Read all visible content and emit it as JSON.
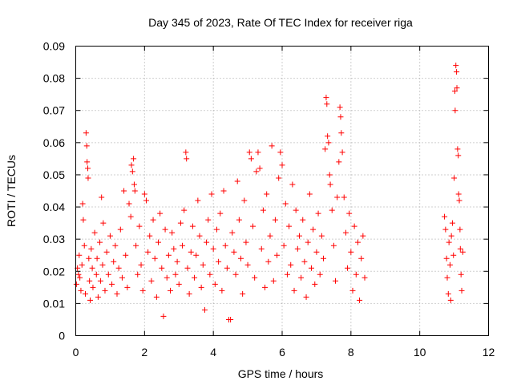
{
  "chart_data": {
    "type": "scatter",
    "title": "Day 345 of 2023, Rate Of TEC Index for receiver riga",
    "xlabel": "GPS time / hours",
    "ylabel": "ROTI / TECUs",
    "xlim": [
      0,
      12
    ],
    "ylim": [
      0,
      0.09
    ],
    "xticks": [
      0,
      2,
      4,
      6,
      8,
      10,
      12
    ],
    "xtick_labels": [
      "0",
      "2",
      "4",
      "6",
      "8",
      "10",
      "12"
    ],
    "yticks": [
      0,
      0.01,
      0.02,
      0.03,
      0.04,
      0.05,
      0.06,
      0.07,
      0.08,
      0.09
    ],
    "ytick_labels": [
      "0",
      "0.01",
      "0.02",
      "0.03",
      "0.04",
      "0.05",
      "0.06",
      "0.07",
      "0.08",
      "0.09"
    ],
    "grid": true,
    "marker": "+",
    "color": "#ff0000",
    "series": [
      {
        "points": [
          [
            0.02,
            0.016
          ],
          [
            0.05,
            0.021
          ],
          [
            0.08,
            0.019
          ],
          [
            0.1,
            0.025
          ],
          [
            0.12,
            0.018
          ],
          [
            0.15,
            0.014
          ],
          [
            0.18,
            0.022
          ],
          [
            0.2,
            0.041
          ],
          [
            0.22,
            0.036
          ],
          [
            0.25,
            0.028
          ],
          [
            0.28,
            0.013
          ],
          [
            0.3,
            0.063
          ],
          [
            0.32,
            0.059
          ],
          [
            0.33,
            0.054
          ],
          [
            0.35,
            0.052
          ],
          [
            0.36,
            0.049
          ],
          [
            0.38,
            0.024
          ],
          [
            0.4,
            0.017
          ],
          [
            0.42,
            0.011
          ],
          [
            0.45,
            0.027
          ],
          [
            0.48,
            0.021
          ],
          [
            0.5,
            0.015
          ],
          [
            0.55,
            0.032
          ],
          [
            0.6,
            0.019
          ],
          [
            0.62,
            0.024
          ],
          [
            0.65,
            0.012
          ],
          [
            0.7,
            0.029
          ],
          [
            0.72,
            0.017
          ],
          [
            0.75,
            0.043
          ],
          [
            0.78,
            0.022
          ],
          [
            0.8,
            0.035
          ],
          [
            0.85,
            0.014
          ],
          [
            0.9,
            0.026
          ],
          [
            0.95,
            0.019
          ],
          [
            1.0,
            0.031
          ],
          [
            1.05,
            0.016
          ],
          [
            1.1,
            0.023
          ],
          [
            1.15,
            0.028
          ],
          [
            1.2,
            0.013
          ],
          [
            1.25,
            0.021
          ],
          [
            1.3,
            0.033
          ],
          [
            1.35,
            0.018
          ],
          [
            1.4,
            0.045
          ],
          [
            1.45,
            0.025
          ],
          [
            1.5,
            0.015
          ],
          [
            1.55,
            0.041
          ],
          [
            1.6,
            0.037
          ],
          [
            1.62,
            0.053
          ],
          [
            1.65,
            0.051
          ],
          [
            1.68,
            0.055
          ],
          [
            1.7,
            0.047
          ],
          [
            1.72,
            0.045
          ],
          [
            1.75,
            0.028
          ],
          [
            1.8,
            0.019
          ],
          [
            1.85,
            0.034
          ],
          [
            1.9,
            0.022
          ],
          [
            1.95,
            0.014
          ],
          [
            2.0,
            0.044
          ],
          [
            2.05,
            0.042
          ],
          [
            2.1,
            0.026
          ],
          [
            2.15,
            0.031
          ],
          [
            2.2,
            0.017
          ],
          [
            2.25,
            0.036
          ],
          [
            2.3,
            0.024
          ],
          [
            2.35,
            0.012
          ],
          [
            2.4,
            0.029
          ],
          [
            2.45,
            0.038
          ],
          [
            2.5,
            0.021
          ],
          [
            2.55,
            0.006
          ],
          [
            2.6,
            0.033
          ],
          [
            2.65,
            0.018
          ],
          [
            2.7,
            0.025
          ],
          [
            2.75,
            0.014
          ],
          [
            2.8,
            0.032
          ],
          [
            2.85,
            0.027
          ],
          [
            2.9,
            0.019
          ],
          [
            2.95,
            0.023
          ],
          [
            3.0,
            0.016
          ],
          [
            3.05,
            0.035
          ],
          [
            3.1,
            0.028
          ],
          [
            3.15,
            0.039
          ],
          [
            3.2,
            0.057
          ],
          [
            3.22,
            0.055
          ],
          [
            3.25,
            0.021
          ],
          [
            3.3,
            0.013
          ],
          [
            3.35,
            0.026
          ],
          [
            3.4,
            0.034
          ],
          [
            3.45,
            0.018
          ],
          [
            3.5,
            0.025
          ],
          [
            3.55,
            0.042
          ],
          [
            3.6,
            0.031
          ],
          [
            3.65,
            0.015
          ],
          [
            3.7,
            0.022
          ],
          [
            3.75,
            0.008
          ],
          [
            3.8,
            0.029
          ],
          [
            3.85,
            0.036
          ],
          [
            3.9,
            0.019
          ],
          [
            3.95,
            0.044
          ],
          [
            4.0,
            0.027
          ],
          [
            4.05,
            0.016
          ],
          [
            4.1,
            0.033
          ],
          [
            4.15,
            0.023
          ],
          [
            4.2,
            0.038
          ],
          [
            4.25,
            0.014
          ],
          [
            4.3,
            0.045
          ],
          [
            4.35,
            0.028
          ],
          [
            4.4,
            0.021
          ],
          [
            4.45,
            0.005
          ],
          [
            4.5,
            0.005
          ],
          [
            4.55,
            0.032
          ],
          [
            4.6,
            0.026
          ],
          [
            4.65,
            0.019
          ],
          [
            4.7,
            0.048
          ],
          [
            4.75,
            0.036
          ],
          [
            4.8,
            0.024
          ],
          [
            4.85,
            0.013
          ],
          [
            4.9,
            0.042
          ],
          [
            4.95,
            0.029
          ],
          [
            5.0,
            0.022
          ],
          [
            5.05,
            0.057
          ],
          [
            5.1,
            0.055
          ],
          [
            5.15,
            0.034
          ],
          [
            5.2,
            0.018
          ],
          [
            5.25,
            0.051
          ],
          [
            5.3,
            0.057
          ],
          [
            5.35,
            0.052
          ],
          [
            5.4,
            0.027
          ],
          [
            5.45,
            0.039
          ],
          [
            5.5,
            0.015
          ],
          [
            5.55,
            0.044
          ],
          [
            5.6,
            0.023
          ],
          [
            5.65,
            0.031
          ],
          [
            5.7,
            0.059
          ],
          [
            5.75,
            0.017
          ],
          [
            5.8,
            0.036
          ],
          [
            5.85,
            0.025
          ],
          [
            5.9,
            0.049
          ],
          [
            5.95,
            0.057
          ],
          [
            6.0,
            0.053
          ],
          [
            6.05,
            0.028
          ],
          [
            6.1,
            0.041
          ],
          [
            6.15,
            0.019
          ],
          [
            6.2,
            0.034
          ],
          [
            6.25,
            0.022
          ],
          [
            6.3,
            0.047
          ],
          [
            6.35,
            0.014
          ],
          [
            6.4,
            0.039
          ],
          [
            6.45,
            0.027
          ],
          [
            6.5,
            0.031
          ],
          [
            6.55,
            0.018
          ],
          [
            6.6,
            0.036
          ],
          [
            6.65,
            0.023
          ],
          [
            6.7,
            0.012
          ],
          [
            6.75,
            0.029
          ],
          [
            6.8,
            0.044
          ],
          [
            6.85,
            0.021
          ],
          [
            6.9,
            0.033
          ],
          [
            6.95,
            0.016
          ],
          [
            7.0,
            0.026
          ],
          [
            7.05,
            0.038
          ],
          [
            7.1,
            0.019
          ],
          [
            7.15,
            0.031
          ],
          [
            7.2,
            0.024
          ],
          [
            7.25,
            0.058
          ],
          [
            7.28,
            0.074
          ],
          [
            7.3,
            0.072
          ],
          [
            7.32,
            0.062
          ],
          [
            7.35,
            0.06
          ],
          [
            7.38,
            0.05
          ],
          [
            7.4,
            0.047
          ],
          [
            7.45,
            0.039
          ],
          [
            7.5,
            0.028
          ],
          [
            7.55,
            0.017
          ],
          [
            7.6,
            0.043
          ],
          [
            7.65,
            0.054
          ],
          [
            7.68,
            0.071
          ],
          [
            7.7,
            0.068
          ],
          [
            7.72,
            0.063
          ],
          [
            7.75,
            0.057
          ],
          [
            7.8,
            0.043
          ],
          [
            7.85,
            0.032
          ],
          [
            7.9,
            0.021
          ],
          [
            7.95,
            0.038
          ],
          [
            8.0,
            0.026
          ],
          [
            8.05,
            0.014
          ],
          [
            8.1,
            0.034
          ],
          [
            8.15,
            0.019
          ],
          [
            8.2,
            0.029
          ],
          [
            8.25,
            0.011
          ],
          [
            8.3,
            0.024
          ],
          [
            8.35,
            0.031
          ],
          [
            8.4,
            0.018
          ],
          [
            10.72,
            0.037
          ],
          [
            10.75,
            0.033
          ],
          [
            10.78,
            0.024
          ],
          [
            10.8,
            0.018
          ],
          [
            10.83,
            0.013
          ],
          [
            10.85,
            0.029
          ],
          [
            10.88,
            0.022
          ],
          [
            10.9,
            0.011
          ],
          [
            10.92,
            0.031
          ],
          [
            10.95,
            0.035
          ],
          [
            10.98,
            0.025
          ],
          [
            11.0,
            0.049
          ],
          [
            11.02,
            0.076
          ],
          [
            11.03,
            0.07
          ],
          [
            11.05,
            0.084
          ],
          [
            11.07,
            0.082
          ],
          [
            11.08,
            0.077
          ],
          [
            11.1,
            0.058
          ],
          [
            11.12,
            0.056
          ],
          [
            11.13,
            0.044
          ],
          [
            11.15,
            0.042
          ],
          [
            11.17,
            0.033
          ],
          [
            11.18,
            0.027
          ],
          [
            11.2,
            0.019
          ],
          [
            11.22,
            0.014
          ],
          [
            11.25,
            0.026
          ]
        ]
      }
    ]
  }
}
